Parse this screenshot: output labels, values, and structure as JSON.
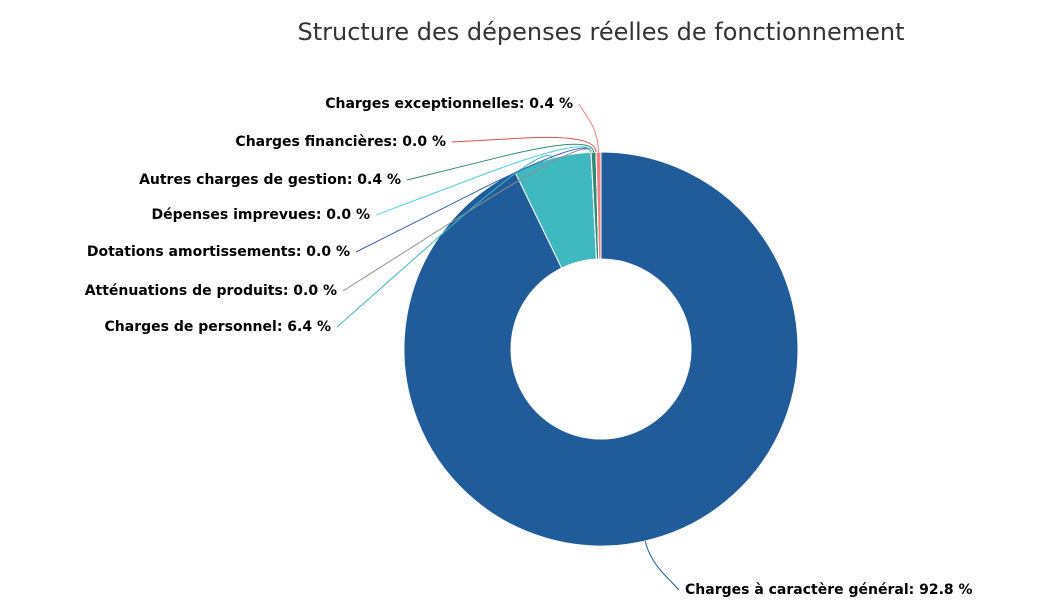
{
  "chart_data": {
    "type": "pie",
    "title": "Structure des dépenses réelles de fonctionnement",
    "categories": [
      "Charges à caractère général",
      "Charges de personnel",
      "Atténuations de produits",
      "Dotations amortissements",
      "Dépenses imprevues",
      "Autres charges de gestion",
      "Charges financières",
      "Charges exceptionnelles"
    ],
    "values": [
      92.8,
      6.4,
      0.0,
      0.0,
      0.0,
      0.4,
      0.0,
      0.4
    ],
    "value_labels": [
      "Charges à caractère général: 92.8 %",
      "Charges de personnel: 6.4 %",
      "Atténuations de produits: 0.0 %",
      "Dotations amortissements: 0.0 %",
      "Dépenses imprevues: 0.0 %",
      "Autres charges de gestion: 0.4 %",
      "Charges financières: 0.0 %",
      "Charges exceptionnelles: 0.4 %"
    ],
    "colors": [
      "#1f5c99",
      "#40b8c0",
      "#909090",
      "#3a5fb0",
      "#4dd0e1",
      "#2e8b74",
      "#e05050",
      "#f08080"
    ]
  }
}
